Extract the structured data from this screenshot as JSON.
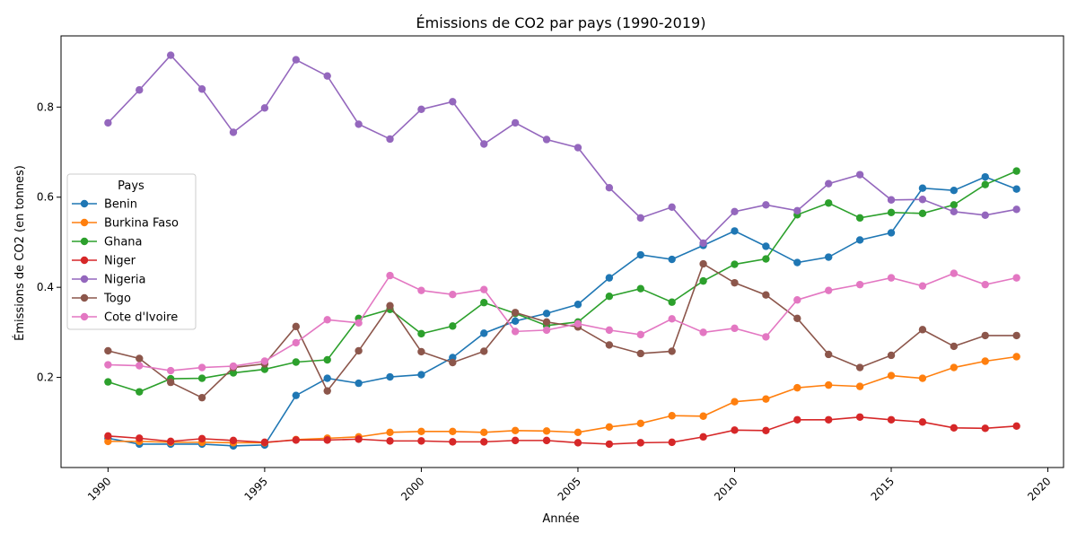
{
  "chart_data": {
    "type": "line",
    "title": "Émissions de CO2 par pays (1990-2019)",
    "xlabel": "Année",
    "ylabel": "Émissions de CO2 (en tonnes)",
    "xlim": [
      1988.5,
      2020.5
    ],
    "ylim": [
      0.0,
      0.958
    ],
    "xticks": [
      1990,
      1995,
      2000,
      2005,
      2010,
      2015,
      2020
    ],
    "yticks": [
      0.2,
      0.4,
      0.6,
      0.8
    ],
    "grid": false,
    "legend": {
      "title": "Pays",
      "placement": "center-left"
    },
    "x": [
      1990,
      1991,
      1992,
      1993,
      1994,
      1995,
      1996,
      1997,
      1998,
      1999,
      2000,
      2001,
      2002,
      2003,
      2004,
      2005,
      2006,
      2007,
      2008,
      2009,
      2010,
      2011,
      2012,
      2013,
      2014,
      2015,
      2016,
      2017,
      2018,
      2019
    ],
    "series": [
      {
        "name": "Benin",
        "color": "#1f77b4",
        "values": [
          0.065,
          0.052,
          0.052,
          0.052,
          0.048,
          0.05,
          0.16,
          0.198,
          0.187,
          0.201,
          0.206,
          0.244,
          0.298,
          0.325,
          0.342,
          0.362,
          0.421,
          0.472,
          0.462,
          0.493,
          0.525,
          0.491,
          0.455,
          0.467,
          0.505,
          0.521,
          0.62,
          0.615,
          0.645,
          0.618
        ]
      },
      {
        "name": "Burkina Faso",
        "color": "#ff7f0e",
        "values": [
          0.058,
          0.058,
          0.056,
          0.056,
          0.055,
          0.055,
          0.062,
          0.065,
          0.068,
          0.078,
          0.08,
          0.08,
          0.078,
          0.082,
          0.081,
          0.078,
          0.09,
          0.098,
          0.115,
          0.114,
          0.146,
          0.152,
          0.177,
          0.183,
          0.18,
          0.204,
          0.198,
          0.222,
          0.236,
          0.246
        ]
      },
      {
        "name": "Ghana",
        "color": "#2ca02c",
        "values": [
          0.19,
          0.168,
          0.197,
          0.198,
          0.21,
          0.218,
          0.234,
          0.239,
          0.331,
          0.351,
          0.297,
          0.314,
          0.366,
          0.342,
          0.315,
          0.323,
          0.38,
          0.397,
          0.367,
          0.414,
          0.451,
          0.463,
          0.561,
          0.587,
          0.554,
          0.566,
          0.564,
          0.583,
          0.628,
          0.658
        ]
      },
      {
        "name": "Niger",
        "color": "#d62728",
        "values": [
          0.07,
          0.065,
          0.058,
          0.064,
          0.06,
          0.056,
          0.061,
          0.061,
          0.063,
          0.059,
          0.059,
          0.057,
          0.057,
          0.06,
          0.06,
          0.055,
          0.052,
          0.055,
          0.056,
          0.068,
          0.083,
          0.082,
          0.106,
          0.106,
          0.112,
          0.106,
          0.101,
          0.088,
          0.087,
          0.092
        ]
      },
      {
        "name": "Nigeria",
        "color": "#9467bd",
        "values": [
          0.765,
          0.838,
          0.915,
          0.84,
          0.744,
          0.798,
          0.905,
          0.869,
          0.762,
          0.729,
          0.795,
          0.812,
          0.718,
          0.765,
          0.728,
          0.71,
          0.621,
          0.554,
          0.578,
          0.498,
          0.568,
          0.583,
          0.57,
          0.63,
          0.65,
          0.594,
          0.595,
          0.568,
          0.56,
          0.573
        ]
      },
      {
        "name": "Togo",
        "color": "#8c564b",
        "values": [
          0.259,
          0.242,
          0.189,
          0.155,
          0.222,
          0.23,
          0.313,
          0.17,
          0.259,
          0.359,
          0.257,
          0.233,
          0.258,
          0.344,
          0.323,
          0.312,
          0.272,
          0.253,
          0.258,
          0.452,
          0.41,
          0.383,
          0.331,
          0.251,
          0.222,
          0.249,
          0.306,
          0.269,
          0.293,
          0.293
        ]
      },
      {
        "name": "Cote d'Ivoire",
        "color": "#e377c2",
        "values": [
          0.228,
          0.226,
          0.215,
          0.222,
          0.225,
          0.236,
          0.277,
          0.328,
          0.321,
          0.426,
          0.393,
          0.384,
          0.395,
          0.302,
          0.305,
          0.319,
          0.305,
          0.295,
          0.33,
          0.3,
          0.309,
          0.29,
          0.372,
          0.393,
          0.406,
          0.421,
          0.403,
          0.431,
          0.406,
          0.421
        ]
      }
    ]
  }
}
